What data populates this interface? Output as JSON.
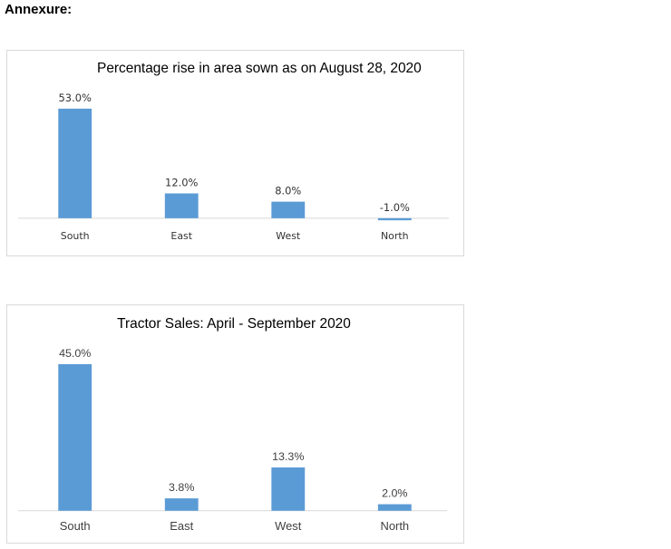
{
  "heading": "Annexure:",
  "colors": {
    "bar": "#5b9bd5",
    "axis": "#d9d9d9",
    "border": "#d9d9d9"
  },
  "chart_data": [
    {
      "type": "bar",
      "title": "Percentage rise in area sown as on August 28, 2020",
      "categories": [
        "South",
        "East",
        "West",
        "North"
      ],
      "values": [
        53.0,
        12.0,
        8.0,
        -1.0
      ],
      "value_labels": [
        "53.0%",
        "12.0%",
        "8.0%",
        "-1.0%"
      ],
      "xlabel": "",
      "ylabel": "",
      "ylim": [
        -1,
        53
      ],
      "grid": false,
      "legend": "none"
    },
    {
      "type": "bar",
      "title": "Tractor Sales: April - September 2020",
      "categories": [
        "South",
        "East",
        "West",
        "North"
      ],
      "values": [
        45.0,
        3.8,
        13.3,
        2.0
      ],
      "value_labels": [
        "45.0%",
        "3.8%",
        "13.3%",
        "2.0%"
      ],
      "xlabel": "",
      "ylabel": "",
      "ylim": [
        0,
        45
      ],
      "grid": false,
      "legend": "none"
    }
  ]
}
